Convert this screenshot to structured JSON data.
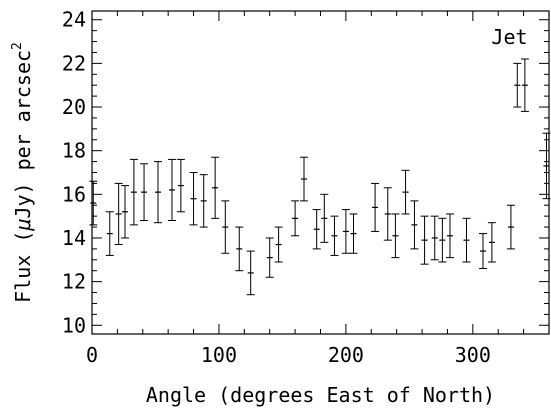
{
  "chart_data": {
    "type": "scatter",
    "title": "",
    "xlabel": "Angle (degrees East of North)",
    "ylabel_parts": [
      "Flux (",
      "μ",
      "Jy) per arcsec",
      "2"
    ],
    "xlim": [
      0,
      360
    ],
    "ylim": [
      9.6,
      24.4
    ],
    "x_ticks": [
      0,
      100,
      200,
      300
    ],
    "y_ticks": [
      10,
      12,
      14,
      16,
      18,
      20,
      22,
      24
    ],
    "annotations": [
      {
        "text": "Jet",
        "x": 343,
        "y": 23.2
      }
    ],
    "series": [
      {
        "points": [
          {
            "x": 1,
            "y": 15.6,
            "err": 1.0
          },
          {
            "x": 14,
            "y": 14.2,
            "err": 1.0
          },
          {
            "x": 21,
            "y": 15.1,
            "err": 1.4
          },
          {
            "x": 26,
            "y": 15.2,
            "err": 1.2
          },
          {
            "x": 33,
            "y": 16.1,
            "err": 1.5
          },
          {
            "x": 41,
            "y": 16.1,
            "err": 1.3
          },
          {
            "x": 52,
            "y": 16.1,
            "err": 1.4
          },
          {
            "x": 63,
            "y": 16.2,
            "err": 1.4
          },
          {
            "x": 70,
            "y": 16.4,
            "err": 1.2
          },
          {
            "x": 80,
            "y": 15.8,
            "err": 1.2
          },
          {
            "x": 88,
            "y": 15.7,
            "err": 1.2
          },
          {
            "x": 97,
            "y": 16.3,
            "err": 1.4
          },
          {
            "x": 105,
            "y": 14.5,
            "err": 1.2
          },
          {
            "x": 116,
            "y": 13.5,
            "err": 1.0
          },
          {
            "x": 125,
            "y": 12.4,
            "err": 1.0
          },
          {
            "x": 140,
            "y": 13.1,
            "err": 0.9
          },
          {
            "x": 147,
            "y": 13.7,
            "err": 0.8
          },
          {
            "x": 160,
            "y": 14.9,
            "err": 0.8
          },
          {
            "x": 167,
            "y": 16.7,
            "err": 1.0
          },
          {
            "x": 177,
            "y": 14.4,
            "err": 0.9
          },
          {
            "x": 183,
            "y": 14.9,
            "err": 1.1
          },
          {
            "x": 191,
            "y": 14.1,
            "err": 0.9
          },
          {
            "x": 200,
            "y": 14.3,
            "err": 1.0
          },
          {
            "x": 206,
            "y": 14.2,
            "err": 0.9
          },
          {
            "x": 223,
            "y": 15.4,
            "err": 1.1
          },
          {
            "x": 233,
            "y": 15.1,
            "err": 1.2
          },
          {
            "x": 239,
            "y": 14.1,
            "err": 1.0
          },
          {
            "x": 247,
            "y": 16.1,
            "err": 1.0
          },
          {
            "x": 254,
            "y": 14.6,
            "err": 1.1
          },
          {
            "x": 262,
            "y": 13.9,
            "err": 1.1
          },
          {
            "x": 270,
            "y": 14.0,
            "err": 1.0
          },
          {
            "x": 276,
            "y": 13.9,
            "err": 1.0
          },
          {
            "x": 282,
            "y": 14.1,
            "err": 1.0
          },
          {
            "x": 295,
            "y": 13.9,
            "err": 1.0
          },
          {
            "x": 308,
            "y": 13.4,
            "err": 0.8
          },
          {
            "x": 315,
            "y": 13.8,
            "err": 0.9
          },
          {
            "x": 330,
            "y": 14.5,
            "err": 1.0
          },
          {
            "x": 335,
            "y": 21.0,
            "err": 1.0
          },
          {
            "x": 341,
            "y": 21.0,
            "err": 1.2
          },
          {
            "x": 358,
            "y": 17.3,
            "err": 1.5
          }
        ]
      }
    ]
  }
}
